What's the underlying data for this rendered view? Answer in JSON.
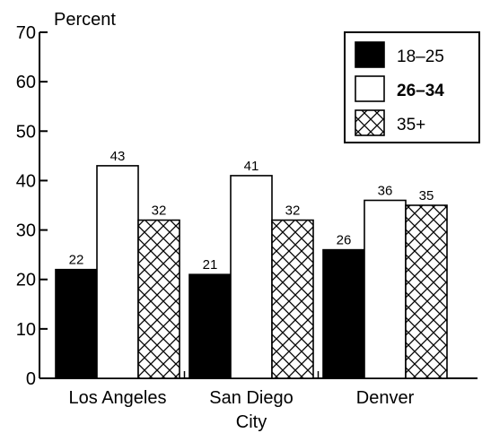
{
  "chart_data": {
    "type": "bar",
    "ylabel": "Percent",
    "xlabel": "City",
    "ylim": [
      0,
      70
    ],
    "yticks": [
      {
        "value": 0,
        "label": "0"
      },
      {
        "value": 10,
        "label": "10"
      },
      {
        "value": 20,
        "label": "20"
      },
      {
        "value": 30,
        "label": "30"
      },
      {
        "value": 40,
        "label": "40"
      },
      {
        "value": 50,
        "label": "50"
      },
      {
        "value": 60,
        "label": "60"
      },
      {
        "value": 70,
        "label": "70"
      }
    ],
    "categories": [
      "Los Angeles",
      "San Diego",
      "Denver"
    ],
    "series": [
      {
        "name": "18–25",
        "values": [
          22,
          21,
          26
        ],
        "fill": "solid-black"
      },
      {
        "name": "26–34",
        "values": [
          43,
          41,
          36
        ],
        "fill": "white"
      },
      {
        "name": "35+",
        "values": [
          32,
          32,
          35
        ],
        "fill": "crosshatch"
      }
    ],
    "data_labels": true,
    "grid": false,
    "legend_position": "top-right",
    "colors": {
      "ink": "#000000",
      "background": "#ffffff"
    }
  }
}
